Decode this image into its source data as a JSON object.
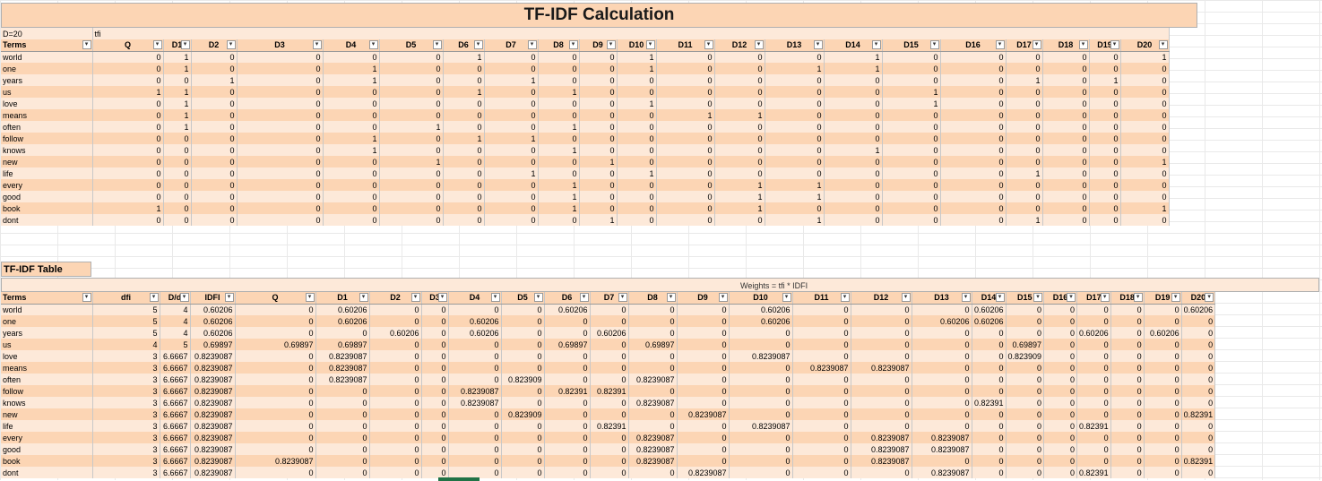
{
  "sheet": {
    "title": "TF-IDF Calculation",
    "top": {
      "info_left": "D=20",
      "info_right": "tfi",
      "headers": [
        "Terms",
        "Q",
        "D1",
        "D2",
        "D3",
        "D4",
        "D5",
        "D6",
        "D7",
        "D8",
        "D9",
        "D10",
        "D11",
        "D12",
        "D13",
        "D14",
        "D15",
        "D16",
        "D17",
        "D18",
        "D19",
        "D20"
      ],
      "rows": [
        [
          "world",
          "0",
          "1",
          "0",
          "0",
          "0",
          "0",
          "1",
          "0",
          "0",
          "0",
          "1",
          "0",
          "0",
          "0",
          "1",
          "0",
          "0",
          "0",
          "0",
          "0",
          "1"
        ],
        [
          "one",
          "0",
          "1",
          "0",
          "0",
          "1",
          "0",
          "0",
          "0",
          "0",
          "0",
          "1",
          "0",
          "0",
          "1",
          "1",
          "0",
          "0",
          "0",
          "0",
          "0",
          "0"
        ],
        [
          "years",
          "0",
          "0",
          "1",
          "0",
          "1",
          "0",
          "0",
          "1",
          "0",
          "0",
          "0",
          "0",
          "0",
          "0",
          "0",
          "0",
          "0",
          "1",
          "0",
          "1",
          "0"
        ],
        [
          "us",
          "1",
          "1",
          "0",
          "0",
          "0",
          "0",
          "1",
          "0",
          "1",
          "0",
          "0",
          "0",
          "0",
          "0",
          "0",
          "1",
          "0",
          "0",
          "0",
          "0",
          "0"
        ],
        [
          "love",
          "0",
          "1",
          "0",
          "0",
          "0",
          "0",
          "0",
          "0",
          "0",
          "0",
          "1",
          "0",
          "0",
          "0",
          "0",
          "1",
          "0",
          "0",
          "0",
          "0",
          "0"
        ],
        [
          "means",
          "0",
          "1",
          "0",
          "0",
          "0",
          "0",
          "0",
          "0",
          "0",
          "0",
          "0",
          "1",
          "1",
          "0",
          "0",
          "0",
          "0",
          "0",
          "0",
          "0",
          "0"
        ],
        [
          "often",
          "0",
          "1",
          "0",
          "0",
          "0",
          "1",
          "0",
          "0",
          "1",
          "0",
          "0",
          "0",
          "0",
          "0",
          "0",
          "0",
          "0",
          "0",
          "0",
          "0",
          "0"
        ],
        [
          "follow",
          "0",
          "0",
          "0",
          "0",
          "1",
          "0",
          "1",
          "1",
          "0",
          "0",
          "0",
          "0",
          "0",
          "0",
          "0",
          "0",
          "0",
          "0",
          "0",
          "0",
          "0"
        ],
        [
          "knows",
          "0",
          "0",
          "0",
          "0",
          "1",
          "0",
          "0",
          "0",
          "1",
          "0",
          "0",
          "0",
          "0",
          "0",
          "1",
          "0",
          "0",
          "0",
          "0",
          "0",
          "0"
        ],
        [
          "new",
          "0",
          "0",
          "0",
          "0",
          "0",
          "1",
          "0",
          "0",
          "0",
          "1",
          "0",
          "0",
          "0",
          "0",
          "0",
          "0",
          "0",
          "0",
          "0",
          "0",
          "1"
        ],
        [
          "life",
          "0",
          "0",
          "0",
          "0",
          "0",
          "0",
          "0",
          "1",
          "0",
          "0",
          "1",
          "0",
          "0",
          "0",
          "0",
          "0",
          "0",
          "1",
          "0",
          "0",
          "0"
        ],
        [
          "every",
          "0",
          "0",
          "0",
          "0",
          "0",
          "0",
          "0",
          "0",
          "1",
          "0",
          "0",
          "0",
          "1",
          "1",
          "0",
          "0",
          "0",
          "0",
          "0",
          "0",
          "0"
        ],
        [
          "good",
          "0",
          "0",
          "0",
          "0",
          "0",
          "0",
          "0",
          "0",
          "1",
          "0",
          "0",
          "0",
          "1",
          "1",
          "0",
          "0",
          "0",
          "0",
          "0",
          "0",
          "0"
        ],
        [
          "book",
          "1",
          "0",
          "0",
          "0",
          "0",
          "0",
          "0",
          "0",
          "1",
          "0",
          "0",
          "0",
          "1",
          "0",
          "0",
          "0",
          "0",
          "0",
          "0",
          "0",
          "1"
        ],
        [
          "dont",
          "0",
          "0",
          "0",
          "0",
          "0",
          "0",
          "0",
          "0",
          "0",
          "1",
          "0",
          "0",
          "0",
          "1",
          "0",
          "0",
          "0",
          "1",
          "0",
          "0",
          "0"
        ]
      ]
    },
    "bottom": {
      "title": "TF-IDF Table",
      "weights_caption": "Weights = tfi * IDFI",
      "headers": [
        "Terms",
        "dfi",
        "D/d",
        "IDFI",
        "Q",
        "D1",
        "D2",
        "D3",
        "D4",
        "D5",
        "D6",
        "D7",
        "D8",
        "D9",
        "D10",
        "D11",
        "D12",
        "D13",
        "D14",
        "D15",
        "D16",
        "D17",
        "D18",
        "D19",
        "D20"
      ],
      "rows": [
        [
          "world",
          "5",
          "4",
          "0.60206",
          "0",
          "0.60206",
          "0",
          "0",
          "0",
          "0",
          "0.60206",
          "0",
          "0",
          "0",
          "0.60206",
          "0",
          "0",
          "0",
          "0.60206",
          "0",
          "0",
          "0",
          "0",
          "0",
          "0.60206"
        ],
        [
          "one",
          "5",
          "4",
          "0.60206",
          "0",
          "0.60206",
          "0",
          "0",
          "0.60206",
          "0",
          "0",
          "0",
          "0",
          "0",
          "0.60206",
          "0",
          "0",
          "0.60206",
          "0.60206",
          "0",
          "0",
          "0",
          "0",
          "0",
          "0"
        ],
        [
          "years",
          "5",
          "4",
          "0.60206",
          "0",
          "0",
          "0.60206",
          "0",
          "0.60206",
          "0",
          "0",
          "0.60206",
          "0",
          "0",
          "0",
          "0",
          "0",
          "0",
          "0",
          "0",
          "0",
          "0.60206",
          "0",
          "0.60206",
          "0"
        ],
        [
          "us",
          "4",
          "5",
          "0.69897",
          "0.69897",
          "0.69897",
          "0",
          "0",
          "0",
          "0",
          "0.69897",
          "0",
          "0.69897",
          "0",
          "0",
          "0",
          "0",
          "0",
          "0",
          "0.69897",
          "0",
          "0",
          "0",
          "0",
          "0"
        ],
        [
          "love",
          "3",
          "6.6667",
          "0.8239087",
          "0",
          "0.8239087",
          "0",
          "0",
          "0",
          "0",
          "0",
          "0",
          "0",
          "0",
          "0.8239087",
          "0",
          "0",
          "0",
          "0",
          "0.823909",
          "0",
          "0",
          "0",
          "0",
          "0"
        ],
        [
          "means",
          "3",
          "6.6667",
          "0.8239087",
          "0",
          "0.8239087",
          "0",
          "0",
          "0",
          "0",
          "0",
          "0",
          "0",
          "0",
          "0",
          "0.8239087",
          "0.8239087",
          "0",
          "0",
          "0",
          "0",
          "0",
          "0",
          "0",
          "0"
        ],
        [
          "often",
          "3",
          "6.6667",
          "0.8239087",
          "0",
          "0.8239087",
          "0",
          "0",
          "0",
          "0.823909",
          "0",
          "0",
          "0.8239087",
          "0",
          "0",
          "0",
          "0",
          "0",
          "0",
          "0",
          "0",
          "0",
          "0",
          "0",
          "0"
        ],
        [
          "follow",
          "3",
          "6.6667",
          "0.8239087",
          "0",
          "0",
          "0",
          "0",
          "0.8239087",
          "0",
          "0.82391",
          "0.82391",
          "0",
          "0",
          "0",
          "0",
          "0",
          "0",
          "0",
          "0",
          "0",
          "0",
          "0",
          "0",
          "0"
        ],
        [
          "knows",
          "3",
          "6.6667",
          "0.8239087",
          "0",
          "0",
          "0",
          "0",
          "0.8239087",
          "0",
          "0",
          "0",
          "0.8239087",
          "0",
          "0",
          "0",
          "0",
          "0",
          "0.82391",
          "0",
          "0",
          "0",
          "0",
          "0",
          "0"
        ],
        [
          "new",
          "3",
          "6.6667",
          "0.8239087",
          "0",
          "0",
          "0",
          "0",
          "0",
          "0.823909",
          "0",
          "0",
          "0",
          "0.8239087",
          "0",
          "0",
          "0",
          "0",
          "0",
          "0",
          "0",
          "0",
          "0",
          "0",
          "0.82391"
        ],
        [
          "life",
          "3",
          "6.6667",
          "0.8239087",
          "0",
          "0",
          "0",
          "0",
          "0",
          "0",
          "0",
          "0.82391",
          "0",
          "0",
          "0.8239087",
          "0",
          "0",
          "0",
          "0",
          "0",
          "0",
          "0.82391",
          "0",
          "0",
          "0"
        ],
        [
          "every",
          "3",
          "6.6667",
          "0.8239087",
          "0",
          "0",
          "0",
          "0",
          "0",
          "0",
          "0",
          "0",
          "0.8239087",
          "0",
          "0",
          "0",
          "0.8239087",
          "0.8239087",
          "0",
          "0",
          "0",
          "0",
          "0",
          "0",
          "0"
        ],
        [
          "good",
          "3",
          "6.6667",
          "0.8239087",
          "0",
          "0",
          "0",
          "0",
          "0",
          "0",
          "0",
          "0",
          "0.8239087",
          "0",
          "0",
          "0",
          "0.8239087",
          "0.8239087",
          "0",
          "0",
          "0",
          "0",
          "0",
          "0",
          "0"
        ],
        [
          "book",
          "3",
          "6.6667",
          "0.8239087",
          "0.8239087",
          "0",
          "0",
          "0",
          "0",
          "0",
          "0",
          "0",
          "0.8239087",
          "0",
          "0",
          "0",
          "0.8239087",
          "0",
          "0",
          "0",
          "0",
          "0",
          "0",
          "0",
          "0.82391"
        ],
        [
          "dont",
          "3",
          "6.6667",
          "0.8239087",
          "0",
          "0",
          "0",
          "0",
          "0",
          "0",
          "0",
          "0",
          "0",
          "0.8239087",
          "0",
          "0",
          "0",
          "0.8239087",
          "0",
          "0",
          "0",
          "0.82391",
          "0",
          "0",
          "0"
        ]
      ]
    }
  }
}
